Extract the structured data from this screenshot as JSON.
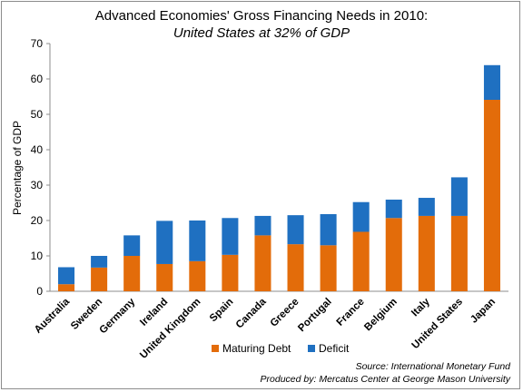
{
  "chart_data": {
    "type": "bar",
    "stacked": true,
    "title": "Advanced Economies' Gross Financing Needs in 2010:",
    "subtitle": "United States at 32% of GDP",
    "ylabel": "Percentage of GDP",
    "xlabel": "",
    "ylim": [
      0,
      70
    ],
    "yticks": [
      0,
      10,
      20,
      30,
      40,
      50,
      60,
      70
    ],
    "grid": false,
    "legend_position": "bottom",
    "categories": [
      "Australia",
      "Sweden",
      "Germany",
      "Ireland",
      "United Kingdom",
      "Spain",
      "Canada",
      "Greece",
      "Portugal",
      "France",
      "Belgium",
      "Italy",
      "United States",
      "Japan"
    ],
    "series": [
      {
        "name": "Maturing Debt",
        "color": "#E36C0A",
        "values": [
          2,
          6.7,
          10,
          7.7,
          8.5,
          10.3,
          15.8,
          13.3,
          13,
          16.8,
          20.7,
          21.3,
          21.3,
          54.1
        ]
      },
      {
        "name": "Deficit",
        "color": "#1F70C1",
        "values": [
          4.8,
          3.3,
          5.8,
          12.2,
          11.5,
          10.4,
          5.5,
          8.2,
          8.8,
          8.4,
          5.2,
          5.1,
          10.9,
          9.8
        ]
      }
    ],
    "source_lines": [
      "Source: International Monetary Fund",
      "Produced by: Mercatus Center at George Mason University"
    ]
  }
}
